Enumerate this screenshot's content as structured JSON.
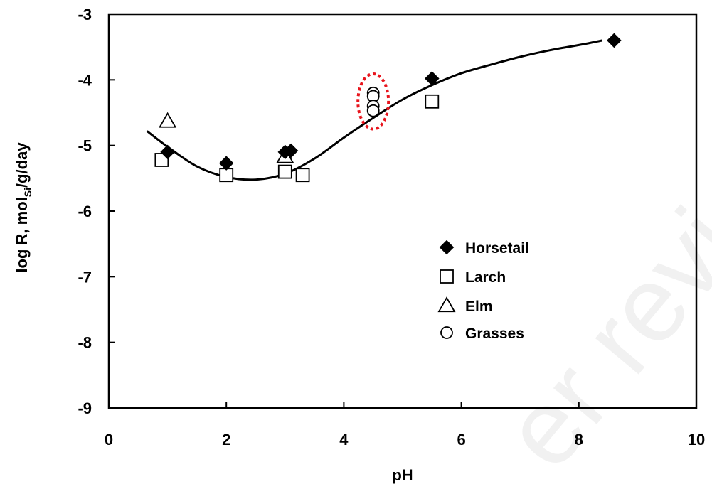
{
  "watermark": "er review",
  "chart_data": {
    "type": "scatter",
    "xlabel": "pH",
    "ylabel_parts": [
      "log R, mol",
      "Si",
      "/g/day"
    ],
    "xlim": [
      0,
      10
    ],
    "ylim": [
      -9,
      -3
    ],
    "x_ticks": [
      0,
      2,
      4,
      6,
      8,
      10
    ],
    "y_ticks": [
      -9,
      -8,
      -7,
      -6,
      -5,
      -4,
      -3
    ],
    "grid": false,
    "legend_position": "lower-right",
    "series": [
      {
        "name": "Horsetail",
        "marker": "diamond",
        "fill": "#000000",
        "points": [
          [
            1.0,
            -5.1
          ],
          [
            2.0,
            -5.27
          ],
          [
            3.0,
            -5.1
          ],
          [
            3.1,
            -5.08
          ],
          [
            5.5,
            -3.98
          ],
          [
            8.6,
            -3.4
          ]
        ]
      },
      {
        "name": "Larch",
        "marker": "square",
        "fill": "#ffffff",
        "points": [
          [
            0.9,
            -5.22
          ],
          [
            2.0,
            -5.45
          ],
          [
            3.0,
            -5.4
          ],
          [
            3.3,
            -5.45
          ],
          [
            5.5,
            -4.33
          ]
        ]
      },
      {
        "name": "Elm",
        "marker": "triangle",
        "fill": "#ffffff",
        "points": [
          [
            1.0,
            -4.63
          ],
          [
            3.0,
            -5.17
          ]
        ]
      },
      {
        "name": "Grasses",
        "marker": "circle",
        "fill": "#ffffff",
        "points": [
          [
            4.5,
            -4.2
          ],
          [
            4.5,
            -4.25
          ],
          [
            4.5,
            -4.4
          ],
          [
            4.5,
            -4.47
          ]
        ]
      }
    ],
    "fit_curve": [
      [
        0.65,
        -4.78
      ],
      [
        1.0,
        -5.02
      ],
      [
        1.5,
        -5.32
      ],
      [
        2.0,
        -5.48
      ],
      [
        2.5,
        -5.52
      ],
      [
        3.0,
        -5.43
      ],
      [
        3.5,
        -5.2
      ],
      [
        4.0,
        -4.88
      ],
      [
        4.5,
        -4.58
      ],
      [
        5.0,
        -4.3
      ],
      [
        5.5,
        -4.08
      ],
      [
        6.0,
        -3.9
      ],
      [
        6.5,
        -3.77
      ],
      [
        7.0,
        -3.65
      ],
      [
        7.5,
        -3.55
      ],
      [
        8.0,
        -3.47
      ],
      [
        8.4,
        -3.4
      ]
    ],
    "highlight_ellipse": {
      "cx": 4.5,
      "cy": -4.33,
      "rx": 0.26,
      "ry": 0.42,
      "color": "#e8141c"
    }
  }
}
